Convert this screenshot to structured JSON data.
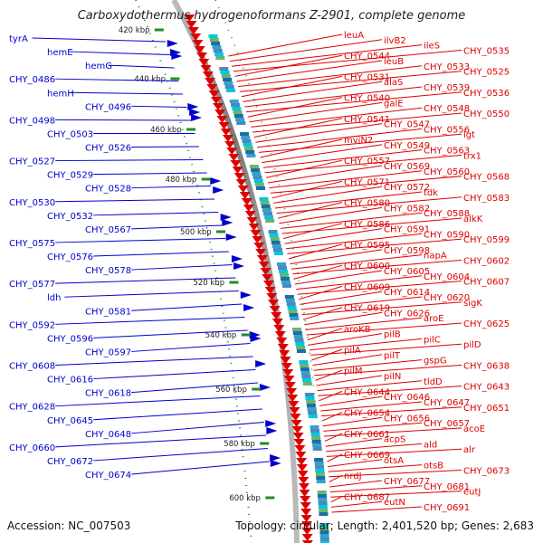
{
  "title": "Carboxydothermus hydrogenoformans Z-2901, complete genome",
  "accession": "Accession: NC_007503",
  "topology": "Topology: circular; Length: 2,401,520 bp; Genes: 2,683",
  "colors": {
    "forward_gene": "#0000cc",
    "reverse_gene": "#dd0000",
    "backbone": "#888888",
    "scale_tick": "#228b22"
  },
  "scale_labels": [
    "420 kbp",
    "440 kbp",
    "460 kbp",
    "480 kbp",
    "500 kbp",
    "520 kbp",
    "540 kbp",
    "560 kbp",
    "580 kbp",
    "600 kbp"
  ],
  "left_labels": [
    "tyrA",
    "hemE",
    "hemG",
    "CHY_0486",
    "hemH",
    "CHY_0496",
    "CHY_0498",
    "CHY_0503",
    "CHY_0526",
    "CHY_0527",
    "CHY_0529",
    "CHY_0528",
    "CHY_0530",
    "CHY_0532",
    "CHY_0567",
    "CHY_0575",
    "CHY_0576",
    "CHY_0578",
    "CHY_0577",
    "ldh",
    "CHY_0581",
    "CHY_0592",
    "CHY_0596",
    "CHY_0597",
    "CHY_0608",
    "CHY_0616",
    "CHY_0618",
    "CHY_0628",
    "CHY_0645",
    "CHY_0648",
    "CHY_0660",
    "CHY_0672",
    "CHY_0674"
  ],
  "right_labels": [
    "leuA",
    "ilvB2",
    "ileS",
    "CHY_0535",
    "CHY_0544",
    "leuB",
    "CHY_0533",
    "CHY_0525",
    "CHY_0531",
    "alaS",
    "CHY_0539",
    "CHY_0536",
    "CHY_0540",
    "galE",
    "CHY_0548",
    "CHY_0550",
    "CHY_0541",
    "CHY_0547",
    "CHY_0556",
    "lgt",
    "mviN2",
    "CHY_0549",
    "CHY_0563",
    "trx1",
    "CHY_0557",
    "CHY_0569",
    "CHY_0560",
    "CHY_0568",
    "CHY_0571",
    "CHY_0572",
    "tdk",
    "CHY_0583",
    "CHY_0580",
    "CHY_0582",
    "CHY_0588",
    "alkK",
    "CHY_0586",
    "CHY_0591",
    "CHY_0590",
    "CHY_0599",
    "CHY_0595",
    "CHY_0598",
    "napA",
    "CHY_0602",
    "CHY_0600",
    "CHY_0605",
    "CHY_0604",
    "CHY_0607",
    "CHY_0609",
    "CHY_0614",
    "CHY_0620",
    "sigK",
    "CHY_0619",
    "CHY_0626",
    "aroE",
    "CHY_0625",
    "aroKB",
    "pilB",
    "pilC",
    "pilD",
    "pilA",
    "pilT",
    "gspG",
    "CHY_0638",
    "pilM",
    "pilN",
    "tldD",
    "CHY_0643",
    "CHY_0644",
    "CHY_0646",
    "CHY_0647",
    "CHY_0651",
    "CHY_0654",
    "CHY_0656",
    "CHY_0657",
    "acoE",
    "CHY_0661",
    "acpS",
    "ald",
    "alr",
    "CHY_0669",
    "otsA",
    "otsB",
    "CHY_0673",
    "nrdJ",
    "CHY_0677",
    "CHY_0681",
    "eutJ",
    "CHY_0687",
    "eutN",
    "CHY_0691"
  ]
}
